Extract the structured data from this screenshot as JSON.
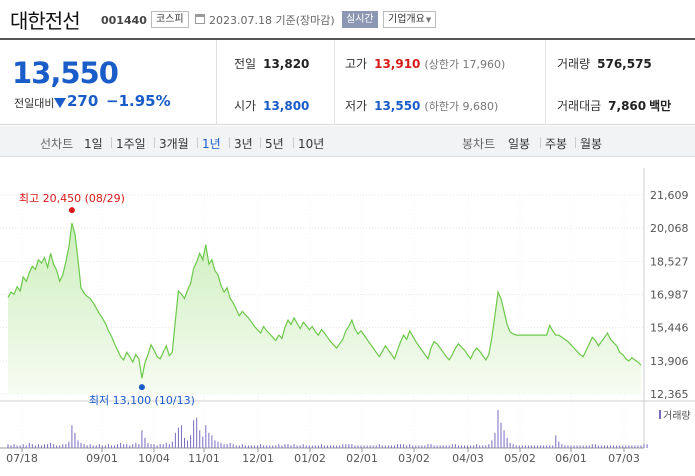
{
  "header": {
    "company": "대한전선",
    "code": "001440",
    "market": "코스피",
    "date_text": "2023.07.18 기준(장마감)",
    "realtime_label": "실시간",
    "overview_label": "기업개요"
  },
  "price": {
    "current": "13,550",
    "change_label": "전일대비",
    "change": "270",
    "change_rate": "−1.95%",
    "direction": "down"
  },
  "stats": {
    "prev_close": {
      "label": "전일",
      "value": "13,820"
    },
    "high": {
      "label": "고가",
      "value": "13,910",
      "sub": "(상한가 17,960)"
    },
    "volume": {
      "label": "거래량",
      "value": "576,575"
    },
    "open": {
      "label": "시가",
      "value": "13,800"
    },
    "low": {
      "label": "저가",
      "value": "13,550",
      "sub": "(하한가 9,680)"
    },
    "amount": {
      "label": "거래대금",
      "value": "7,860",
      "unit": "백만"
    }
  },
  "period_bar": {
    "line_label": "선차트",
    "line_items": [
      "1일",
      "1주일",
      "3개월",
      "1년",
      "3년",
      "5년",
      "10년"
    ],
    "active_index": 3,
    "candle_label": "봉차트",
    "candle_items": [
      "일봉",
      "주봉",
      "월봉"
    ]
  },
  "colors": {
    "price_down": "#1a5cc8",
    "price_up": "#d91a1a",
    "line": "#6cc84a",
    "area": "#e3f7d8",
    "volume_bar": "#7a6bc0"
  },
  "chart_data": {
    "type": "area",
    "y_ticks": [
      "21,609",
      "20,068",
      "18,527",
      "16,987",
      "15,446",
      "13,906",
      "12,365"
    ],
    "ylim": [
      12365,
      21609
    ],
    "x_ticks": [
      "07/18",
      "09/01",
      "10/04",
      "11/01",
      "12/01",
      "01/02",
      "02/01",
      "03/02",
      "04/03",
      "05/02",
      "06/01",
      "07/03"
    ],
    "high_label": "최고 20,450 (08/29)",
    "low_label": "최저 13,100 (10/13)",
    "volume_legend": "거래량",
    "series": [
      {
        "values": [
          16850,
          17100,
          17000,
          17350,
          17150,
          17800,
          17600,
          18000,
          18300,
          18150,
          18600,
          18450,
          18700,
          18250,
          18900,
          18400,
          18100,
          17600,
          17900,
          18500,
          19200,
          20300,
          19800,
          18600,
          17300,
          17050,
          16900,
          16800,
          16600,
          16350,
          16100,
          15900,
          15650,
          15300,
          15050,
          14700,
          14400,
          14100,
          13950,
          14300,
          14100,
          13850,
          14200,
          14000,
          13100,
          13800,
          14200,
          14650,
          14400,
          14100,
          14000,
          14300,
          14600,
          14150,
          14300,
          15800,
          17150,
          17000,
          16800,
          17200,
          17500,
          18200,
          18500,
          18900,
          18600,
          19300,
          18400,
          18600,
          18100,
          17900,
          17400,
          17100,
          17300,
          16800,
          16600,
          16300,
          16000,
          16200,
          16050,
          15900,
          15700,
          15500,
          15350,
          15200,
          15500,
          15300,
          15150,
          15000,
          14850,
          15100,
          14950,
          15450,
          15800,
          15600,
          15900,
          15650,
          15400,
          15700,
          15550,
          15350,
          15500,
          15250,
          15100,
          15350,
          15200,
          15000,
          14800,
          14650,
          14500,
          14700,
          14900,
          15300,
          15500,
          15800,
          15400,
          15150,
          15300,
          15100,
          14900,
          14700,
          14500,
          14300,
          14100,
          14350,
          14600,
          14400,
          14200,
          14000,
          14400,
          14800,
          15100,
          14900,
          15300,
          15050,
          14800,
          14600,
          14400,
          14200,
          14000,
          14500,
          14800,
          14700,
          14500,
          14300,
          14100,
          13950,
          14200,
          14500,
          14700,
          14550,
          14400,
          14200,
          14000,
          14300,
          14500,
          14350,
          14150,
          13950,
          14200,
          15000,
          16000,
          17100,
          16800,
          16200,
          15600,
          15250,
          15150,
          15100,
          15100,
          15100,
          15100,
          15100,
          15100,
          15100,
          15100,
          15100,
          15100,
          15100,
          15550,
          15300,
          15100,
          15100,
          15000,
          14900,
          14800,
          14650,
          14500,
          14350,
          14200,
          14100,
          14400,
          14700,
          15000,
          14850,
          14600,
          14800,
          15000,
          15200,
          14900,
          14750,
          14600,
          14300,
          14200,
          14000,
          13900,
          14050,
          13950,
          13850,
          13700
        ]
      }
    ],
    "volume": [
      3,
      2,
      3,
      2,
      2,
      3,
      2,
      4,
      3,
      2,
      3,
      2,
      3,
      3,
      4,
      3,
      2,
      2,
      3,
      3,
      5,
      18,
      12,
      6,
      4,
      3,
      2,
      3,
      2,
      2,
      3,
      2,
      2,
      3,
      2,
      2,
      3,
      4,
      3,
      3,
      2,
      3,
      4,
      3,
      14,
      8,
      4,
      3,
      3,
      2,
      3,
      3,
      4,
      3,
      5,
      12,
      16,
      18,
      8,
      6,
      10,
      22,
      24,
      14,
      9,
      18,
      12,
      10,
      6,
      5,
      4,
      3,
      3,
      4,
      3,
      2,
      2,
      3,
      2,
      2,
      2,
      2,
      2,
      3,
      2,
      2,
      2,
      2,
      2,
      3,
      2,
      3,
      3,
      2,
      3,
      2,
      2,
      3,
      2,
      2,
      2,
      2,
      2,
      3,
      2,
      2,
      2,
      2,
      2,
      2,
      3,
      3,
      3,
      3,
      2,
      2,
      2,
      2,
      2,
      2,
      2,
      2,
      3,
      2,
      2,
      2,
      2,
      2,
      3,
      3,
      3,
      2,
      3,
      2,
      2,
      2,
      2,
      2,
      3,
      3,
      2,
      2,
      2,
      2,
      2,
      2,
      3,
      3,
      2,
      2,
      2,
      2,
      2,
      2,
      3,
      2,
      2,
      2,
      3,
      6,
      12,
      30,
      20,
      14,
      8,
      4,
      3,
      2,
      2,
      2,
      2,
      2,
      2,
      2,
      2,
      2,
      2,
      2,
      2,
      2,
      10,
      5,
      3,
      2,
      2,
      2,
      2,
      2,
      2,
      2,
      2,
      2,
      3,
      3,
      2,
      2,
      2,
      2,
      2,
      2,
      2,
      2,
      2,
      2,
      2,
      2,
      2,
      2,
      2,
      3,
      3
    ]
  }
}
